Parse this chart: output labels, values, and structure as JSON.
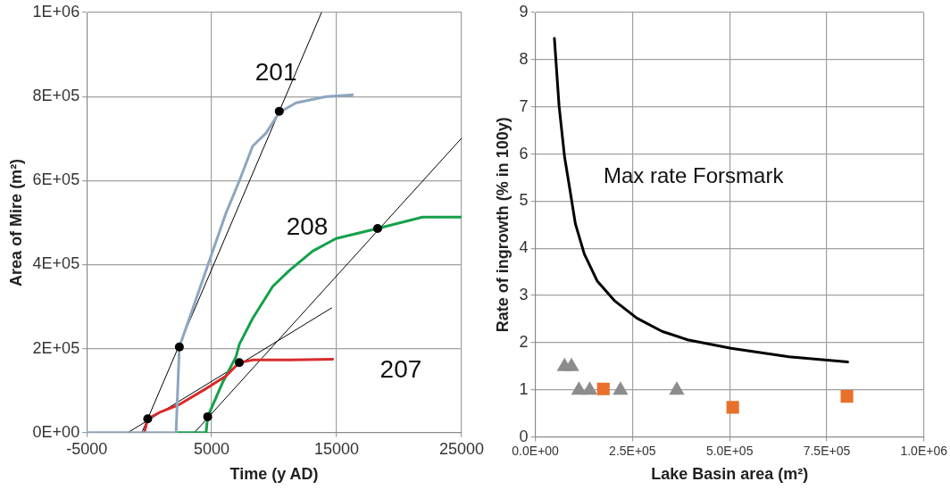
{
  "chart_data": [
    {
      "type": "line",
      "xlabel": "Time (y AD)",
      "ylabel": "Area of Mire (m²)",
      "xlim": [
        -5000,
        25000
      ],
      "ylim": [
        0,
        1000000
      ],
      "xticks": [
        -5000,
        5000,
        15000,
        25000
      ],
      "yticks": [
        {
          "value": 0,
          "label": "0E+00"
        },
        {
          "value": 200000,
          "label": "2E+05"
        },
        {
          "value": 400000,
          "label": "4E+05"
        },
        {
          "value": 600000,
          "label": "6E+05"
        },
        {
          "value": 800000,
          "label": "8E+05"
        },
        {
          "value": 1000000,
          "label": "1E+06"
        }
      ],
      "grid": true,
      "legend": false,
      "marker": "none",
      "series": [
        {
          "name": "201",
          "color": "#8da6c0",
          "x": [
            -5000,
            2147,
            2413,
            3480,
            5080,
            6150,
            7210,
            8280,
            9350,
            10410,
            11750,
            14150,
            16280
          ],
          "values": [
            0,
            0,
            204000,
            295000,
            432000,
            523000,
            599000,
            682000,
            713000,
            762000,
            785000,
            800000,
            804000
          ]
        },
        {
          "name": "207",
          "color": "#d92b2b",
          "x": [
            -387,
            -120,
            810,
            2410,
            4550,
            6150,
            7210,
            8280,
            11210,
            14680
          ],
          "values": [
            0,
            33000,
            48000,
            67000,
            105000,
            135000,
            167000,
            173000,
            173000,
            175000
          ]
        },
        {
          "name": "208",
          "color": "#14a04a",
          "x": [
            2147,
            4550,
            4680,
            5880,
            6950,
            7210,
            8280,
            9880,
            11210,
            13080,
            14950,
            18280,
            21880,
            25000
          ],
          "values": [
            0,
            0,
            38000,
            120000,
            181000,
            210000,
            272000,
            348000,
            386000,
            432000,
            462000,
            486000,
            513000,
            513000
          ]
        },
        {
          "color": "#000000",
          "x": [
            -595,
            13790
          ],
          "values": [
            0,
            1000000
          ]
        },
        {
          "color": "#000000",
          "x": [
            -1720,
            14600
          ],
          "values": [
            0,
            297000
          ]
        },
        {
          "color": "#000000",
          "x": [
            3610,
            25000
          ],
          "values": [
            0,
            701000
          ]
        },
        {
          "type": "scatter",
          "color": "#000000",
          "marker": "circle",
          "x": [
            -120,
            2413,
            10410,
            7210,
            4680,
            18280
          ],
          "values": [
            33000,
            204000,
            765000,
            167000,
            38000,
            486000
          ]
        }
      ]
    },
    {
      "type": "scatter",
      "xlabel": "Lake Basin area (m²)",
      "ylabel": "Rate of ingrowth (% in 100y)",
      "xlim": [
        0,
        1000000
      ],
      "ylim": [
        0,
        9
      ],
      "xticks": [
        {
          "value": 0,
          "label": "0.0E+00"
        },
        {
          "value": 250000,
          "label": "2.5E+05"
        },
        {
          "value": 500000,
          "label": "5.0E+05"
        },
        {
          "value": 750000,
          "label": "7.5E+05"
        },
        {
          "value": 1000000,
          "label": "1.0E+06"
        }
      ],
      "yticks": [
        0,
        1,
        2,
        3,
        4,
        5,
        6,
        7,
        8,
        9
      ],
      "grid": true,
      "legend": false,
      "series": [
        {
          "type": "line",
          "name": "Max rate Forsmark",
          "color": "#000000",
          "marker": "none",
          "x": [
            49000,
            61000,
            75000,
            89000,
            103000,
            126000,
            159000,
            205000,
            261000,
            326000,
            392000,
            504000,
            653000,
            804000
          ],
          "values": [
            8.45,
            7.02,
            5.95,
            5.24,
            4.52,
            3.88,
            3.31,
            2.88,
            2.52,
            2.24,
            2.06,
            1.88,
            1.7,
            1.59
          ]
        },
        {
          "color": "#8c8c8c",
          "marker": "triangle",
          "x": [
            75000,
            93000,
            112000,
            140000,
            219000,
            364000
          ],
          "values": [
            1.49,
            1.49,
            0.99,
            0.99,
            0.99,
            0.99
          ]
        },
        {
          "color": "#e8702a",
          "marker": "square",
          "x": [
            175000,
            508000,
            802000
          ],
          "values": [
            1.02,
            0.63,
            0.86
          ]
        }
      ]
    }
  ]
}
